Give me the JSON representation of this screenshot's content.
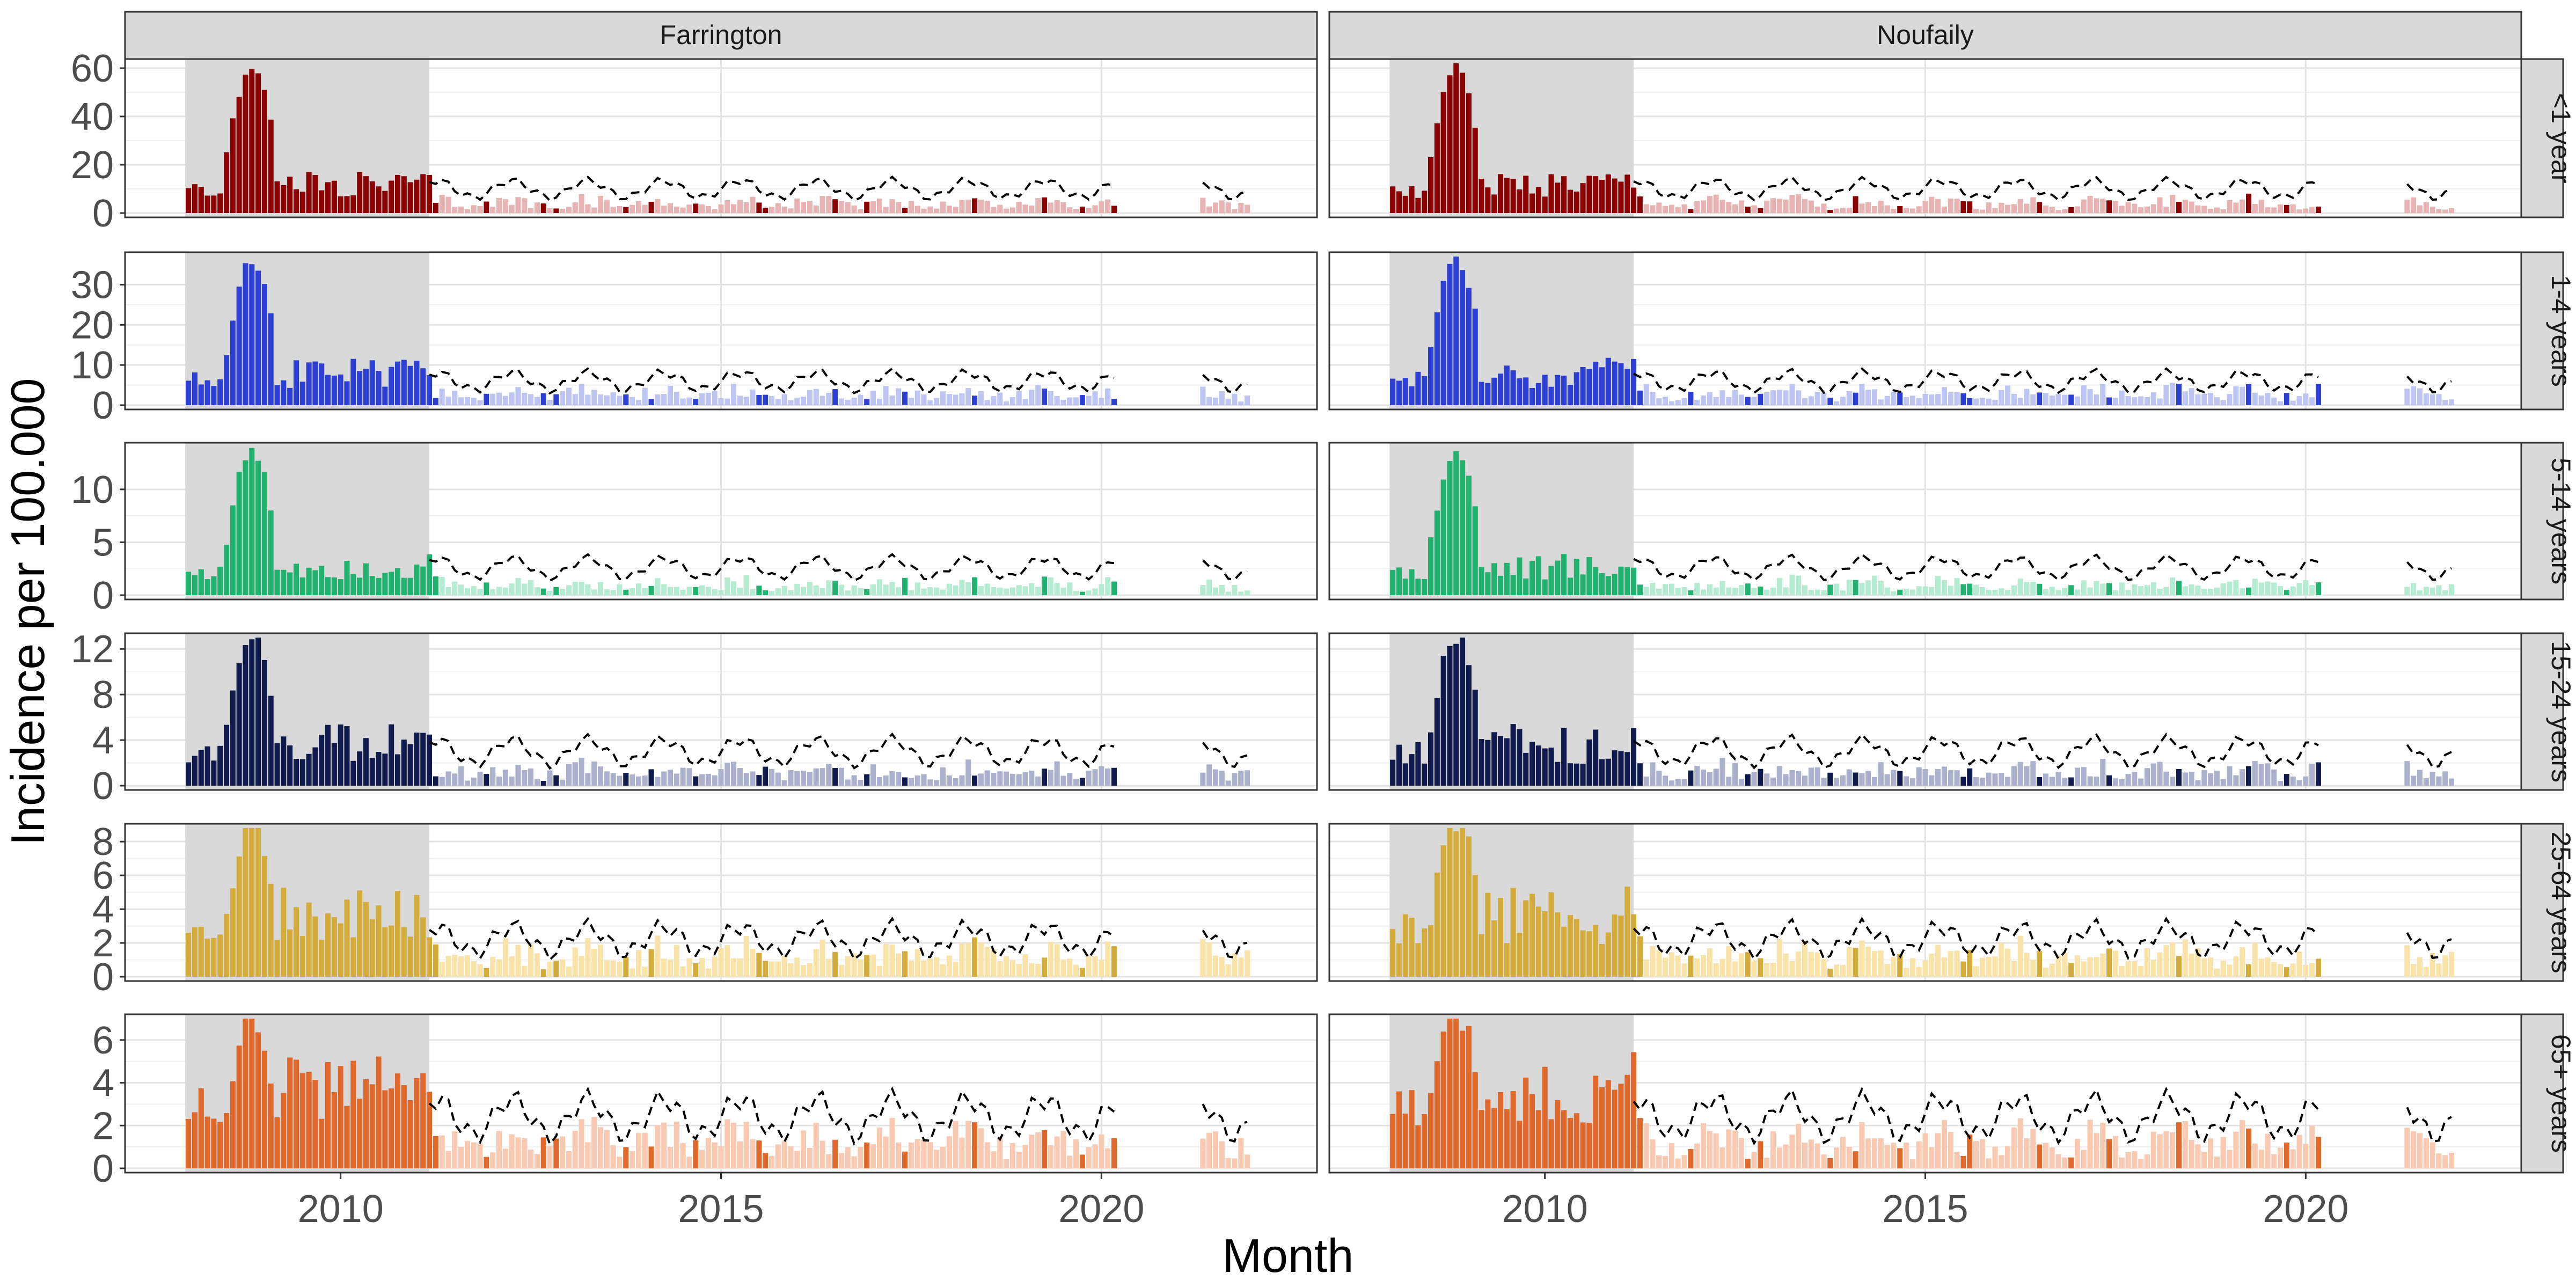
{
  "chart_data": {
    "type": "bar",
    "xlabel": "Month",
    "ylabel": "Incidence per 100.000",
    "x_range": [
      "2008-01",
      "2021-12"
    ],
    "x_ticks": [
      "2010",
      "2015",
      "2020"
    ],
    "training_period_end": "2011-03",
    "columns": [
      "Farrington",
      "Noufaily"
    ],
    "rows": [
      {
        "label": "<1 year",
        "color": "#8B0000",
        "light_color": "#E8B3B3",
        "ylim": [
          0,
          62
        ],
        "yticks": [
          0,
          20,
          40,
          60
        ],
        "peak": 59,
        "base": 5,
        "threshold_level": 10
      },
      {
        "label": "1-4 years",
        "color": "#2E3FD6",
        "light_color": "#BFC5F2",
        "ylim": [
          0,
          37
        ],
        "yticks": [
          0,
          10,
          20,
          30
        ],
        "peak": 35,
        "base": 3.5,
        "threshold_level": 6
      },
      {
        "label": "5-14 years",
        "color": "#20B26E",
        "light_color": "#B5EBD1",
        "ylim": [
          0,
          14
        ],
        "yticks": [
          0,
          5,
          10
        ],
        "peak": 13,
        "base": 1.2,
        "threshold_level": 2.6
      },
      {
        "label": "15-24 years",
        "color": "#101A4C",
        "light_color": "#ABB1CD",
        "ylim": [
          0,
          13
        ],
        "yticks": [
          0,
          4,
          8,
          12
        ],
        "peak": 12.3,
        "base": 1.6,
        "threshold_level": 3
      },
      {
        "label": "25-64 years",
        "color": "#D4AC3C",
        "light_color": "#F9E3A9",
        "ylim": [
          0,
          8.8
        ],
        "yticks": [
          0,
          2,
          4,
          6,
          8
        ],
        "peak": 8.3,
        "base": 1.6,
        "threshold_level": 2.2
      },
      {
        "label": "65+ years",
        "color": "#E0682B",
        "light_color": "#F9C9B1",
        "ylim": [
          0,
          7
        ],
        "yticks": [
          0,
          2,
          4,
          6
        ],
        "peak": 6.6,
        "base": 1.6,
        "threshold_level": 2.4
      }
    ]
  }
}
